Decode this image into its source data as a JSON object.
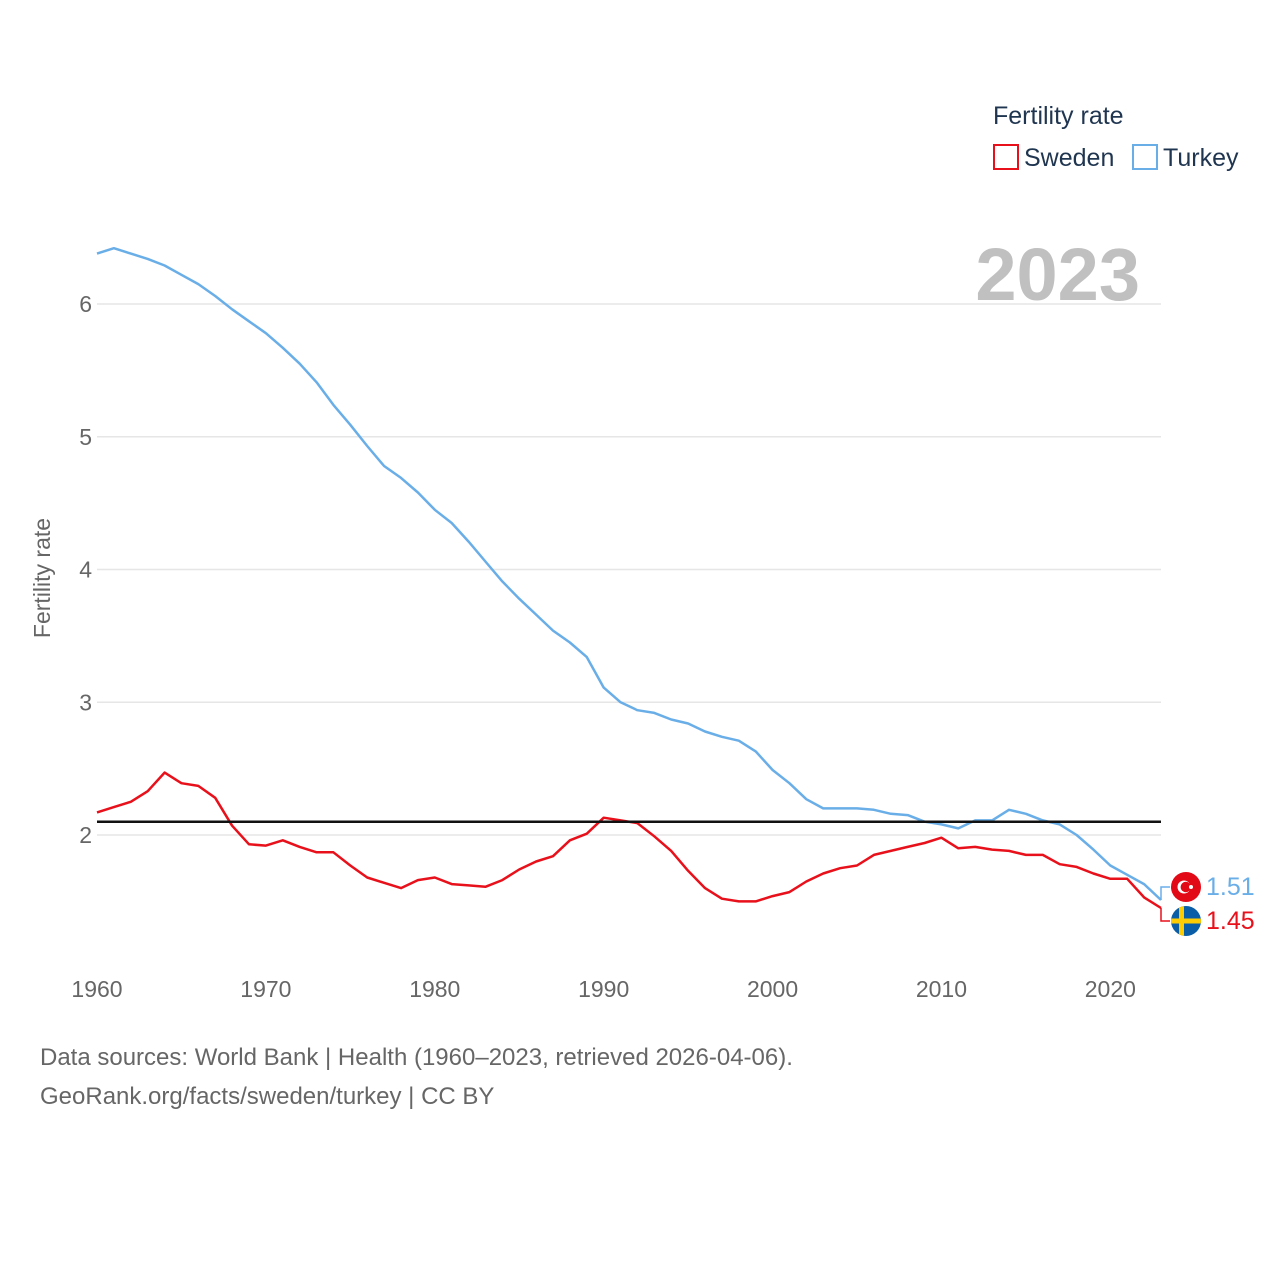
{
  "chart_data": {
    "type": "line",
    "title": "",
    "ylabel": "Fertility rate",
    "xlabel": "",
    "year_label": "2023",
    "xlim": [
      1960,
      2023
    ],
    "ylim": [
      1.0,
      6.5
    ],
    "xticks": [
      1960,
      1970,
      1980,
      1990,
      2000,
      2010,
      2020
    ],
    "yticks": [
      2,
      3,
      4,
      5,
      6
    ],
    "reference_line": 2.1,
    "legend": {
      "title": "Fertility rate",
      "position": "top-right",
      "entries": [
        "Sweden",
        "Turkey"
      ]
    },
    "x": [
      1960,
      1961,
      1962,
      1963,
      1964,
      1965,
      1966,
      1967,
      1968,
      1969,
      1970,
      1971,
      1972,
      1973,
      1974,
      1975,
      1976,
      1977,
      1978,
      1979,
      1980,
      1981,
      1982,
      1983,
      1984,
      1985,
      1986,
      1987,
      1988,
      1989,
      1990,
      1991,
      1992,
      1993,
      1994,
      1995,
      1996,
      1997,
      1998,
      1999,
      2000,
      2001,
      2002,
      2003,
      2004,
      2005,
      2006,
      2007,
      2008,
      2009,
      2010,
      2011,
      2012,
      2013,
      2014,
      2015,
      2016,
      2017,
      2018,
      2019,
      2020,
      2021,
      2022,
      2023
    ],
    "series": [
      {
        "name": "Sweden",
        "color": "#e8111b",
        "end_label": "1.45",
        "values": [
          2.17,
          2.21,
          2.25,
          2.33,
          2.47,
          2.39,
          2.37,
          2.28,
          2.07,
          1.93,
          1.92,
          1.96,
          1.91,
          1.87,
          1.87,
          1.77,
          1.68,
          1.64,
          1.6,
          1.66,
          1.68,
          1.63,
          1.62,
          1.61,
          1.66,
          1.74,
          1.8,
          1.84,
          1.96,
          2.01,
          2.13,
          2.11,
          2.09,
          1.99,
          1.88,
          1.73,
          1.6,
          1.52,
          1.5,
          1.5,
          1.54,
          1.57,
          1.65,
          1.71,
          1.75,
          1.77,
          1.85,
          1.88,
          1.91,
          1.94,
          1.98,
          1.9,
          1.91,
          1.89,
          1.88,
          1.85,
          1.85,
          1.78,
          1.76,
          1.71,
          1.67,
          1.67,
          1.53,
          1.45
        ]
      },
      {
        "name": "Turkey",
        "color": "#6aaee8",
        "end_label": "1.51",
        "values": [
          6.38,
          6.42,
          6.38,
          6.34,
          6.29,
          6.22,
          6.15,
          6.06,
          5.96,
          5.87,
          5.78,
          5.67,
          5.55,
          5.41,
          5.24,
          5.09,
          4.93,
          4.78,
          4.69,
          4.58,
          4.45,
          4.35,
          4.21,
          4.06,
          3.91,
          3.78,
          3.66,
          3.54,
          3.45,
          3.34,
          3.11,
          3.0,
          2.94,
          2.92,
          2.87,
          2.84,
          2.78,
          2.74,
          2.71,
          2.63,
          2.49,
          2.39,
          2.27,
          2.2,
          2.2,
          2.2,
          2.19,
          2.16,
          2.15,
          2.1,
          2.08,
          2.05,
          2.11,
          2.11,
          2.19,
          2.16,
          2.11,
          2.08,
          2.0,
          1.89,
          1.77,
          1.7,
          1.63,
          1.51
        ]
      }
    ]
  },
  "footer": {
    "line1": "Data sources: World Bank | Health (1960–2023, retrieved 2026-04-06).",
    "line2": "GeoRank.org/facts/sweden/turkey | CC BY"
  }
}
